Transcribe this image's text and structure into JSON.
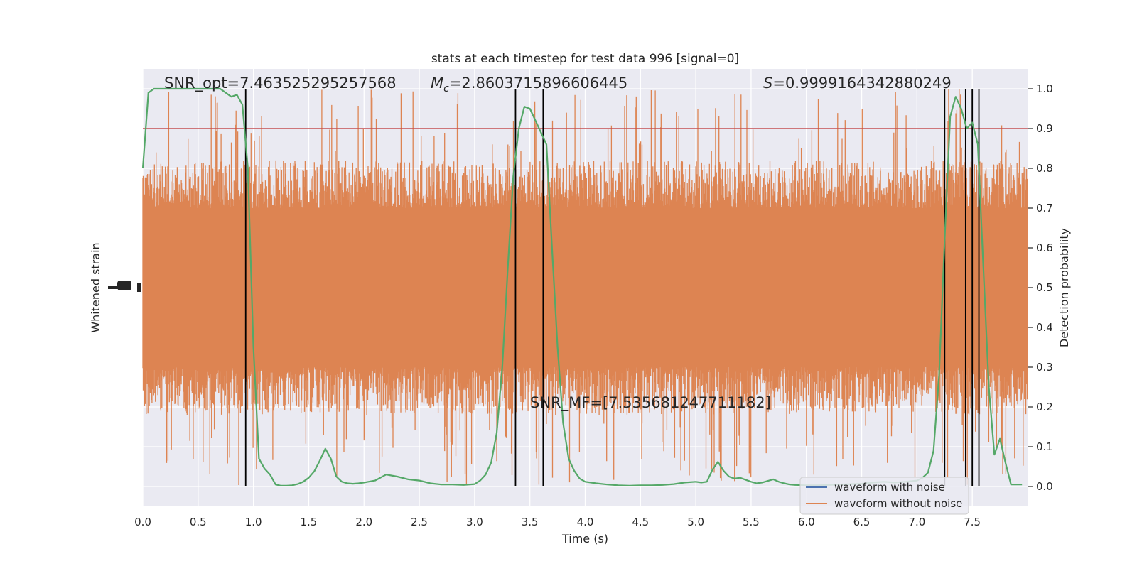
{
  "chart_data": {
    "type": "line",
    "title": "stats at each timestep for test data 996 [signal=0]",
    "xlabel": "Time (s)",
    "ylabel_left": "Whitened strain",
    "ylabel_right": "Detection probability",
    "xlim": [
      0.0,
      8.0
    ],
    "ylim_right": [
      -0.05,
      1.05
    ],
    "xticks": [
      0.0,
      0.5,
      1.0,
      1.5,
      2.0,
      2.5,
      3.0,
      3.5,
      4.0,
      4.5,
      5.0,
      5.5,
      6.0,
      6.5,
      7.0,
      7.5
    ],
    "xtick_labels": [
      "0.0",
      "0.5",
      "1.0",
      "1.5",
      "2.0",
      "2.5",
      "3.0",
      "3.5",
      "4.0",
      "4.5",
      "5.0",
      "5.5",
      "6.0",
      "6.5",
      "7.0",
      "7.5"
    ],
    "yticks_right": [
      0.0,
      0.1,
      0.2,
      0.3,
      0.4,
      0.5,
      0.6,
      0.7,
      0.8,
      0.9,
      1.0
    ],
    "ytick_right_labels": [
      "0.0",
      "0.1",
      "0.2",
      "0.3",
      "0.4",
      "0.5",
      "0.6",
      "0.7",
      "0.8",
      "0.9",
      "1.0"
    ],
    "grid": true,
    "legend_position": "bottom-right",
    "annotations": {
      "snr_opt": "SNR_opt=7.463525295257568",
      "mc": "=2.8603715896606445",
      "mc_symbol": "M",
      "mc_sub": "c",
      "s": "=0.9999164342880249",
      "s_symbol": "S",
      "snr_mf": "SNR_MF=[7.535681247711182]"
    },
    "threshold": {
      "value": 0.9,
      "color": "#c44e52"
    },
    "event_lines_x": [
      0.93,
      3.37,
      3.62,
      7.25,
      7.44,
      7.5,
      7.56
    ],
    "series": [
      {
        "name": "waveform with noise",
        "color": "#4c72b0",
        "kind": "strain"
      },
      {
        "name": "waveform without noise",
        "color": "#dd8452",
        "kind": "strain",
        "band_low": 0.3,
        "band_high": 0.7,
        "spike_low": 0.0,
        "spike_high": 1.0
      },
      {
        "name": "",
        "color": "#55a868",
        "kind": "probability",
        "x": [
          0.0,
          0.05,
          0.1,
          0.15,
          0.2,
          0.25,
          0.3,
          0.35,
          0.4,
          0.45,
          0.5,
          0.55,
          0.6,
          0.65,
          0.7,
          0.75,
          0.8,
          0.85,
          0.9,
          0.95,
          1.0,
          1.05,
          1.1,
          1.15,
          1.2,
          1.25,
          1.3,
          1.35,
          1.4,
          1.45,
          1.5,
          1.55,
          1.6,
          1.65,
          1.7,
          1.75,
          1.8,
          1.85,
          1.9,
          1.95,
          2.0,
          2.1,
          2.2,
          2.3,
          2.4,
          2.5,
          2.6,
          2.7,
          2.8,
          2.9,
          3.0,
          3.05,
          3.1,
          3.15,
          3.2,
          3.25,
          3.3,
          3.35,
          3.4,
          3.45,
          3.5,
          3.55,
          3.6,
          3.65,
          3.7,
          3.75,
          3.8,
          3.85,
          3.9,
          3.95,
          4.0,
          4.05,
          4.1,
          4.2,
          4.3,
          4.4,
          4.5,
          4.6,
          4.7,
          4.8,
          4.9,
          5.0,
          5.05,
          5.1,
          5.15,
          5.2,
          5.25,
          5.3,
          5.35,
          5.4,
          5.5,
          5.55,
          5.6,
          5.7,
          5.75,
          5.8,
          5.85,
          5.9,
          6.0,
          6.1,
          6.2,
          6.3,
          6.4,
          6.5,
          6.6,
          6.7,
          6.8,
          6.9,
          7.0,
          7.05,
          7.1,
          7.15,
          7.2,
          7.25,
          7.3,
          7.35,
          7.4,
          7.45,
          7.5,
          7.55,
          7.6,
          7.65,
          7.7,
          7.75,
          7.8,
          7.85,
          7.9,
          7.95
        ],
        "y": [
          0.8,
          0.99,
          1.0,
          1.0,
          1.0,
          1.0,
          1.0,
          1.0,
          1.0,
          1.0,
          1.0,
          1.0,
          1.0,
          1.0,
          1.0,
          0.99,
          0.98,
          0.985,
          0.96,
          0.8,
          0.35,
          0.07,
          0.045,
          0.03,
          0.005,
          0.002,
          0.002,
          0.003,
          0.006,
          0.012,
          0.022,
          0.038,
          0.065,
          0.095,
          0.07,
          0.025,
          0.012,
          0.008,
          0.007,
          0.008,
          0.01,
          0.015,
          0.03,
          0.025,
          0.018,
          0.015,
          0.008,
          0.005,
          0.005,
          0.004,
          0.006,
          0.015,
          0.03,
          0.06,
          0.135,
          0.3,
          0.55,
          0.78,
          0.9,
          0.955,
          0.95,
          0.92,
          0.89,
          0.86,
          0.6,
          0.35,
          0.16,
          0.07,
          0.04,
          0.02,
          0.012,
          0.01,
          0.008,
          0.005,
          0.003,
          0.002,
          0.003,
          0.003,
          0.004,
          0.006,
          0.01,
          0.012,
          0.01,
          0.012,
          0.042,
          0.062,
          0.04,
          0.025,
          0.02,
          0.022,
          0.012,
          0.008,
          0.01,
          0.018,
          0.012,
          0.008,
          0.005,
          0.004,
          0.003,
          0.003,
          0.004,
          0.005,
          0.006,
          0.007,
          0.01,
          0.012,
          0.01,
          0.012,
          0.015,
          0.022,
          0.035,
          0.09,
          0.28,
          0.62,
          0.93,
          0.98,
          0.95,
          0.9,
          0.915,
          0.86,
          0.55,
          0.25,
          0.08,
          0.12,
          0.06,
          0.005,
          0.005,
          0.005
        ]
      }
    ]
  }
}
